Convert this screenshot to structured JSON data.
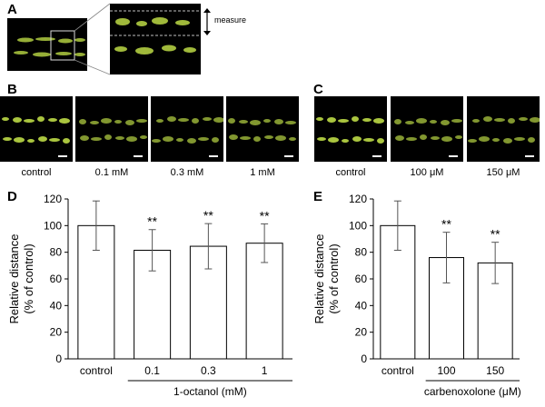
{
  "panels": {
    "A": "A",
    "B": "B",
    "C": "C",
    "D": "D",
    "E": "E"
  },
  "panel_a": {
    "measure_label": "measure"
  },
  "panel_b": {
    "captions": [
      "control",
      "0.1 mM",
      "0.3 mM",
      "1 mM"
    ]
  },
  "panel_c": {
    "captions": [
      "control",
      "100 μM",
      "150 μM"
    ]
  },
  "colors": {
    "fluorescence": "#c8e84a",
    "background": "#000000",
    "bar_fill": "#ffffff",
    "stroke": "#000000"
  },
  "chart_data": [
    {
      "type": "bar",
      "panel": "D",
      "categories": [
        "control",
        "0.1",
        "0.3",
        "1"
      ],
      "values": [
        100,
        81.5,
        84.5,
        86.8
      ],
      "errors": [
        18.5,
        15.5,
        17.0,
        14.5
      ],
      "significance": [
        "",
        "**",
        "**",
        "**"
      ],
      "ylabel_line1": "Relative distance",
      "ylabel_line2": "(% of control)",
      "group_label": "1-octanol (mM)",
      "ylim": [
        0,
        120
      ],
      "yticks": [
        "0",
        "20",
        "40",
        "60",
        "80",
        "100",
        "120"
      ]
    },
    {
      "type": "bar",
      "panel": "E",
      "categories": [
        "control",
        "100",
        "150"
      ],
      "values": [
        100,
        76.0,
        72.0
      ],
      "errors": [
        18.5,
        19.0,
        15.5
      ],
      "significance": [
        "",
        "**",
        "**"
      ],
      "ylabel_line1": "Relative distance",
      "ylabel_line2": "(% of control)",
      "group_label": "carbenoxolone (μM)",
      "ylim": [
        0,
        120
      ],
      "yticks": [
        "0",
        "20",
        "40",
        "60",
        "80",
        "100",
        "120"
      ]
    }
  ]
}
